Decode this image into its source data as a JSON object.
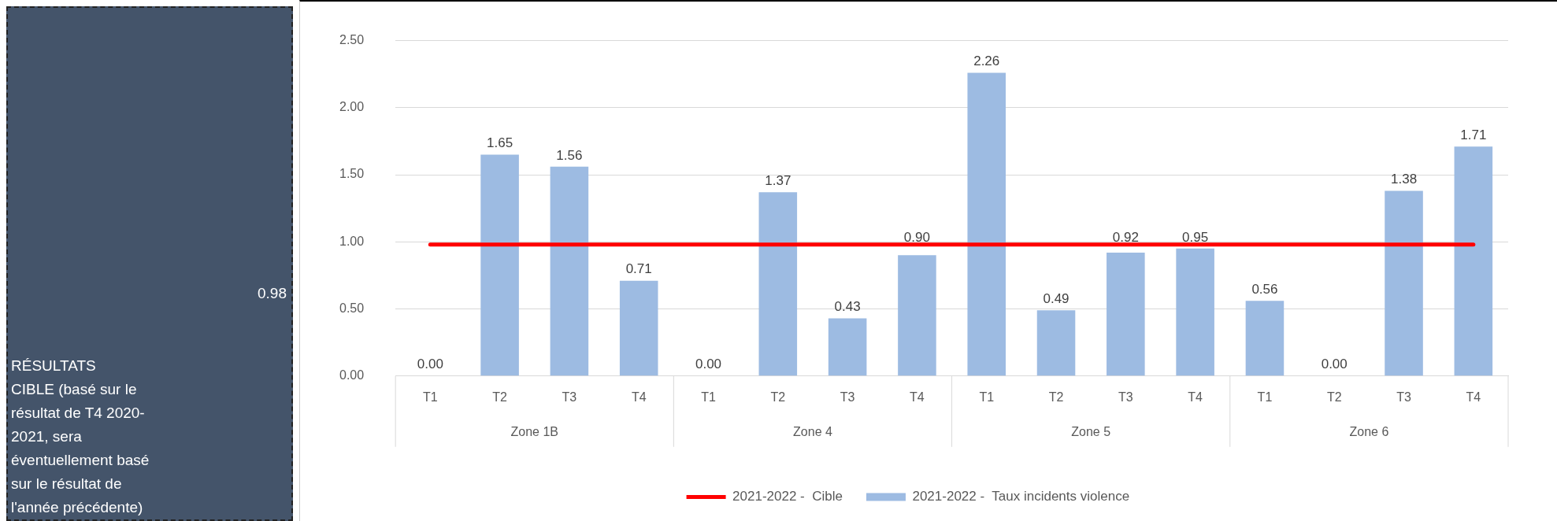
{
  "chart_data": [
    {
      "type": "other",
      "annotations": [
        "RÉSULTATS",
        "CIBLE (basé sur le résultat de T4 2020-2021, sera éventuellement basé sur le résultat de l'année précédente)",
        "0.98"
      ]
    },
    {
      "type": "bar",
      "categories": [
        "T1",
        "T2",
        "T3",
        "T4",
        "T1",
        "T2",
        "T3",
        "T4",
        "T1",
        "T2",
        "T3",
        "T4",
        "T1",
        "T2",
        "T3",
        "T4"
      ],
      "series": [
        {
          "name": "2021-2022 -  Taux incidents violence",
          "color": "#9dbbe2",
          "values": [
            0,
            1.65,
            1.56,
            0.71,
            0,
            1.37,
            0.43,
            0.9,
            2.26,
            0.49,
            0.92,
            0.95,
            0.56,
            0,
            1.38,
            1.71
          ],
          "value_labels": [
            "0.00",
            "1.65",
            "1.56",
            "0.71",
            "0.00",
            "1.37",
            "0.43",
            "0.90",
            "2.26",
            "0.49",
            "0.92",
            "0.95",
            "0.56",
            "0.00",
            "1.38",
            "1.71"
          ]
        },
        {
          "name": "2021-2022 -  Cible",
          "type": "line",
          "color": "#ff0000",
          "values": [
            0.98,
            0.98,
            0.98,
            0.98,
            0.98,
            0.98,
            0.98,
            0.98,
            0.98,
            0.98,
            0.98,
            0.98,
            0.98,
            0.98,
            0.98,
            0.98
          ]
        }
      ],
      "annotations": [
        "Zone 1B",
        "Zone 4",
        "Zone 5",
        "Zone 6"
      ],
      "ylim": [
        0,
        2.5
      ],
      "yticks": [
        {
          "value": 0,
          "label": "0.00"
        },
        {
          "value": 0.5,
          "label": "0.50"
        },
        {
          "value": 1,
          "label": "1.00"
        },
        {
          "value": 1.5,
          "label": "1.50"
        },
        {
          "value": 2,
          "label": "2.00"
        },
        {
          "value": 2.5,
          "label": "2.50"
        }
      ],
      "grid": "y",
      "legend": "bottom"
    }
  ]
}
